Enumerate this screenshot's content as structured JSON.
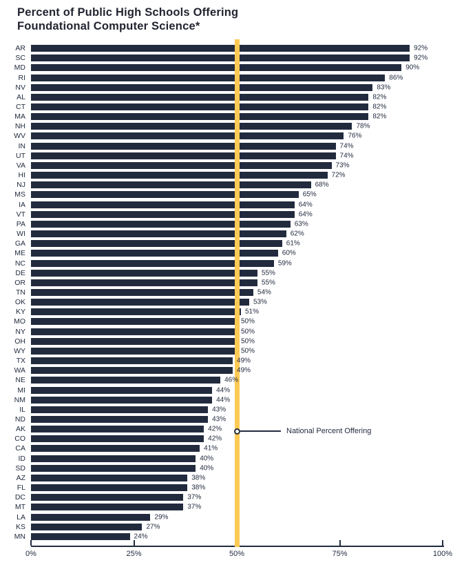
{
  "colors": {
    "bar": "#222b3e",
    "text": "#222b3e",
    "title": "#222430",
    "reference_line": "#fcca55",
    "background": "#ffffff"
  },
  "chart_data": {
    "type": "bar",
    "orientation": "horizontal",
    "title": "Percent of Public High Schools Offering Foundational Computer Science*",
    "xlabel": "",
    "ylabel": "",
    "xlim": [
      0,
      100
    ],
    "grid": false,
    "x_tick_values": [
      0,
      25,
      50,
      75,
      100
    ],
    "x_tick_labels": [
      "0%",
      "25%",
      "50%",
      "75%",
      "100%"
    ],
    "value_suffix": "%",
    "reference_line": {
      "value": 50,
      "label": "National Percent Offering",
      "color": "#fcca55"
    },
    "categories": [
      "AR",
      "SC",
      "MD",
      "RI",
      "NV",
      "AL",
      "CT",
      "MA",
      "NH",
      "WV",
      "IN",
      "UT",
      "VA",
      "HI",
      "NJ",
      "MS",
      "IA",
      "VT",
      "PA",
      "WI",
      "GA",
      "ME",
      "NC",
      "DE",
      "OR",
      "TN",
      "OK",
      "KY",
      "MO",
      "NY",
      "OH",
      "WY",
      "TX",
      "WA",
      "NE",
      "MI",
      "NM",
      "IL",
      "ND",
      "AK",
      "CO",
      "CA",
      "ID",
      "SD",
      "AZ",
      "FL",
      "DC",
      "MT",
      "LA",
      "KS",
      "MN"
    ],
    "values": [
      92,
      92,
      90,
      86,
      83,
      82,
      82,
      82,
      78,
      76,
      74,
      74,
      73,
      72,
      68,
      65,
      64,
      64,
      63,
      62,
      61,
      60,
      59,
      55,
      55,
      54,
      53,
      51,
      50,
      50,
      50,
      50,
      49,
      49,
      46,
      44,
      44,
      43,
      43,
      42,
      42,
      41,
      40,
      40,
      38,
      38,
      37,
      37,
      29,
      27,
      24
    ]
  }
}
